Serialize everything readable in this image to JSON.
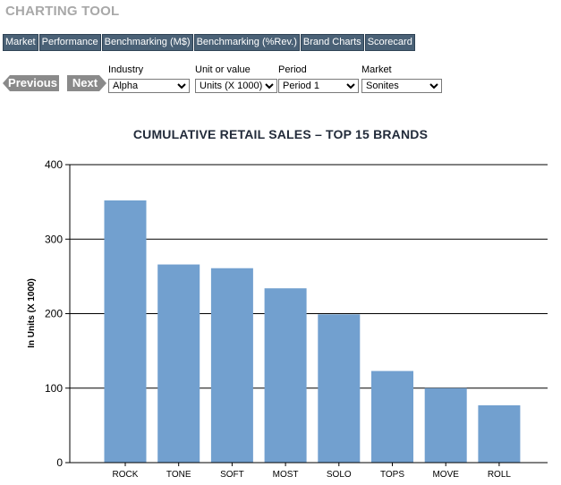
{
  "app": {
    "title": "CHARTING TOOL"
  },
  "tabs": [
    {
      "label": "Market"
    },
    {
      "label": "Performance"
    },
    {
      "label": "Benchmarking (M$)"
    },
    {
      "label": "Benchmarking (%Rev.)"
    },
    {
      "label": "Brand Charts"
    },
    {
      "label": "Scorecard"
    }
  ],
  "nav": {
    "previous_label": "Previous",
    "next_label": "Next"
  },
  "filters": {
    "industry": {
      "label": "Industry",
      "value": "Alpha"
    },
    "unit": {
      "label": "Unit or value",
      "value": "Units (X 1000)"
    },
    "period": {
      "label": "Period",
      "value": "Period 1"
    },
    "market": {
      "label": "Market",
      "value": "Sonites"
    }
  },
  "chart_data": {
    "type": "bar",
    "title": "CUMULATIVE RETAIL SALES – TOP 15 BRANDS",
    "xlabel": "",
    "ylabel": "In Units (X 1000)",
    "ylim": [
      0,
      400
    ],
    "yticks": [
      0,
      100,
      200,
      300,
      400
    ],
    "grid": true,
    "bar_color": "#72a0cf",
    "categories": [
      "ROCK",
      "TONE",
      "SOFT",
      "MOST",
      "SOLO",
      "TOPS",
      "MOVE",
      "ROLL"
    ],
    "values": [
      352,
      266,
      261,
      234,
      199,
      123,
      100,
      77
    ]
  }
}
